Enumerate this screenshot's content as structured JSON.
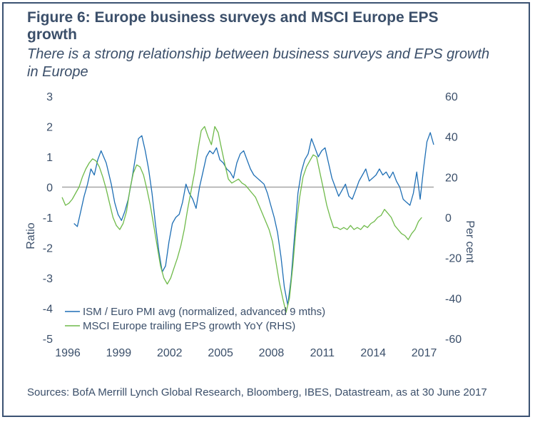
{
  "figure": {
    "title": "Figure 6: Europe business surveys and MSCI Europe EPS growth",
    "subtitle": "There is a strong relationship between business surveys and EPS growth in Europe",
    "source": "Sources: BofA Merrill Lynch Global Research, Bloomberg, IBES, Datastream, as at 30 June 2017"
  },
  "chart_data": {
    "type": "line",
    "xlabel": "",
    "ylabel": "Ratio",
    "y2label": "Per cent",
    "xlim": [
      1996,
      2017.9
    ],
    "ylim": [
      -5,
      3
    ],
    "y2lim": [
      -60,
      60
    ],
    "x_ticks": [
      "1996",
      "1999",
      "2002",
      "2005",
      "2008",
      "2011",
      "2014",
      "2017"
    ],
    "y_ticks": [
      "3",
      "2",
      "1",
      "0",
      "-1",
      "-2",
      "-3",
      "-4",
      "-5"
    ],
    "y2_ticks": [
      "60",
      "40",
      "20",
      "0",
      "-20",
      "-40",
      "-60"
    ],
    "zero_line": true,
    "grid": false,
    "legend": "bottom-left",
    "colors": {
      "series1": "#1f6fb5",
      "series2": "#6fba4a",
      "zero_line": "#a6a6a6",
      "frame": "#3b5272",
      "text": "#3b4f6a"
    },
    "series": [
      {
        "name": "ISM / Euro PMI avg (normalized, advanced 9 mths)",
        "axis": "left",
        "color": "#1f6fb5",
        "x": [
          1996.7,
          1996.9,
          1997.1,
          1997.3,
          1997.5,
          1997.7,
          1997.9,
          1998.1,
          1998.3,
          1998.6,
          1998.9,
          1999.1,
          1999.3,
          1999.5,
          1999.7,
          1999.9,
          2000.1,
          2000.3,
          2000.5,
          2000.7,
          2000.9,
          2001.1,
          2001.3,
          2001.5,
          2001.7,
          2001.9,
          2002.1,
          2002.3,
          2002.5,
          2002.7,
          2002.9,
          2003.1,
          2003.3,
          2003.5,
          2003.7,
          2003.9,
          2004.1,
          2004.3,
          2004.5,
          2004.7,
          2004.9,
          2005.1,
          2005.3,
          2005.5,
          2005.7,
          2005.9,
          2006.1,
          2006.3,
          2006.5,
          2006.7,
          2006.9,
          2007.1,
          2007.3,
          2007.5,
          2007.7,
          2007.9,
          2008.1,
          2008.3,
          2008.5,
          2008.7,
          2008.9,
          2009.1,
          2009.3,
          2009.5,
          2009.7,
          2009.9,
          2010.1,
          2010.3,
          2010.5,
          2010.7,
          2010.9,
          2011.1,
          2011.3,
          2011.5,
          2011.7,
          2011.9,
          2012.1,
          2012.3,
          2012.5,
          2012.7,
          2012.9,
          2013.1,
          2013.3,
          2013.5,
          2013.7,
          2013.9,
          2014.1,
          2014.3,
          2014.5,
          2014.7,
          2014.9,
          2015.1,
          2015.3,
          2015.5,
          2015.7,
          2015.9,
          2016.1,
          2016.3,
          2016.5,
          2016.7,
          2016.9,
          2017.1,
          2017.3,
          2017.5,
          2017.7,
          2017.9
        ],
        "values": [
          -1.2,
          -1.3,
          -0.8,
          -0.3,
          0.1,
          0.6,
          0.4,
          0.9,
          1.2,
          0.8,
          0.1,
          -0.5,
          -0.9,
          -1.1,
          -0.8,
          -0.4,
          0.2,
          0.9,
          1.6,
          1.7,
          1.2,
          0.6,
          -0.2,
          -1.2,
          -2.1,
          -2.8,
          -2.6,
          -1.8,
          -1.2,
          -1.0,
          -0.9,
          -0.5,
          0.1,
          -0.2,
          -0.4,
          -0.7,
          0.0,
          0.5,
          1.0,
          1.2,
          1.1,
          1.3,
          0.9,
          0.8,
          0.6,
          0.5,
          0.3,
          0.8,
          1.1,
          1.2,
          0.9,
          0.6,
          0.4,
          0.3,
          0.2,
          0.1,
          -0.2,
          -0.6,
          -1.0,
          -1.5,
          -2.3,
          -3.3,
          -3.9,
          -3.0,
          -1.6,
          -0.2,
          0.5,
          0.9,
          1.1,
          1.6,
          1.3,
          1.0,
          1.2,
          1.3,
          0.8,
          0.3,
          0.0,
          -0.3,
          -0.1,
          0.1,
          -0.3,
          -0.4,
          -0.1,
          0.2,
          0.4,
          0.6,
          0.2,
          0.3,
          0.4,
          0.6,
          0.4,
          0.5,
          0.3,
          0.5,
          0.2,
          0.0,
          -0.4,
          -0.5,
          -0.6,
          -0.2,
          0.5,
          -0.4,
          0.6,
          1.5,
          1.8,
          1.4
        ]
      },
      {
        "name": "MSCI Europe trailing EPS growth YoY (RHS)",
        "axis": "right",
        "color": "#6fba4a",
        "x": [
          1996.0,
          1996.2,
          1996.4,
          1996.6,
          1996.8,
          1997.0,
          1997.2,
          1997.4,
          1997.6,
          1997.8,
          1998.0,
          1998.2,
          1998.4,
          1998.6,
          1998.8,
          1999.0,
          1999.2,
          1999.4,
          1999.6,
          1999.8,
          2000.0,
          2000.2,
          2000.4,
          2000.6,
          2000.8,
          2001.0,
          2001.2,
          2001.4,
          2001.6,
          2001.8,
          2002.0,
          2002.2,
          2002.4,
          2002.6,
          2002.8,
          2003.0,
          2003.2,
          2003.4,
          2003.6,
          2003.8,
          2004.0,
          2004.2,
          2004.4,
          2004.6,
          2004.8,
          2005.0,
          2005.2,
          2005.4,
          2005.6,
          2005.8,
          2006.0,
          2006.2,
          2006.4,
          2006.6,
          2006.8,
          2007.0,
          2007.2,
          2007.4,
          2007.6,
          2007.8,
          2008.0,
          2008.2,
          2008.4,
          2008.6,
          2008.8,
          2009.0,
          2009.2,
          2009.4,
          2009.6,
          2009.8,
          2010.0,
          2010.2,
          2010.4,
          2010.6,
          2010.8,
          2011.0,
          2011.2,
          2011.4,
          2011.6,
          2011.8,
          2012.0,
          2012.2,
          2012.4,
          2012.6,
          2012.8,
          2013.0,
          2013.2,
          2013.4,
          2013.6,
          2013.8,
          2014.0,
          2014.2,
          2014.4,
          2014.6,
          2014.8,
          2015.0,
          2015.2,
          2015.4,
          2015.6,
          2015.8,
          2016.0,
          2016.2,
          2016.4,
          2016.6,
          2016.8,
          2017.0,
          2017.2
        ],
        "values": [
          10,
          6,
          7,
          9,
          12,
          15,
          20,
          24,
          27,
          29,
          28,
          25,
          20,
          14,
          7,
          0,
          -4,
          -6,
          -3,
          3,
          14,
          22,
          26,
          25,
          21,
          14,
          6,
          -4,
          -14,
          -24,
          -30,
          -33,
          -30,
          -25,
          -20,
          -14,
          -6,
          4,
          13,
          22,
          33,
          43,
          45,
          40,
          36,
          45,
          42,
          34,
          26,
          19,
          17,
          18,
          19,
          17,
          16,
          14,
          12,
          10,
          6,
          2,
          -2,
          -6,
          -12,
          -22,
          -32,
          -40,
          -47,
          -40,
          -24,
          -4,
          10,
          20,
          25,
          28,
          31,
          30,
          22,
          14,
          6,
          0,
          -5,
          -5,
          -6,
          -5,
          -6,
          -4,
          -6,
          -5,
          -6,
          -4,
          -5,
          -3,
          -2,
          0,
          1,
          4,
          2,
          0,
          -4,
          -6,
          -8,
          -9,
          -11,
          -8,
          -6,
          -2,
          0
        ]
      }
    ]
  }
}
